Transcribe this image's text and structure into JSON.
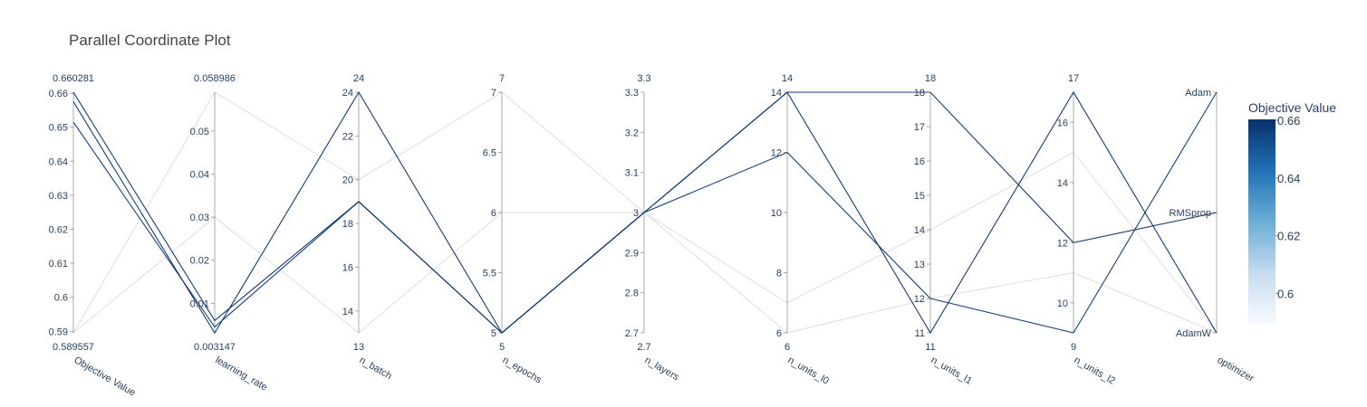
{
  "chart_data": {
    "type": "parallel_coordinates",
    "title": "Parallel Coordinate Plot",
    "axes": [
      {
        "key": "objective",
        "label": "Objective Value",
        "range": [
          0.589557,
          0.660281
        ],
        "range_labels": [
          "0.589557",
          "0.660281"
        ],
        "ticks": [
          0.59,
          0.6,
          0.61,
          0.62,
          0.63,
          0.64,
          0.65,
          0.66
        ],
        "tick_labels": [
          "0.59",
          "0.6",
          "0.61",
          "0.62",
          "0.63",
          "0.64",
          "0.65",
          "0.66"
        ]
      },
      {
        "key": "learning_rate",
        "label": "learning_rate",
        "range": [
          0.003147,
          0.058986
        ],
        "range_labels": [
          "0.003147",
          "0.058986"
        ],
        "ticks": [
          0.01,
          0.02,
          0.03,
          0.04,
          0.05
        ],
        "tick_labels": [
          "0.01",
          "0.02",
          "0.03",
          "0.04",
          "0.05"
        ]
      },
      {
        "key": "n_batch",
        "label": "n_batch",
        "range": [
          13,
          24
        ],
        "range_labels": [
          "13",
          "24"
        ],
        "ticks": [
          14,
          16,
          18,
          20,
          22,
          24
        ],
        "tick_labels": [
          "14",
          "16",
          "18",
          "20",
          "22",
          "24"
        ]
      },
      {
        "key": "n_epochs",
        "label": "n_epochs",
        "range": [
          5,
          7
        ],
        "range_labels": [
          "5",
          "7"
        ],
        "ticks": [
          5,
          5.5,
          6,
          6.5,
          7
        ],
        "tick_labels": [
          "5",
          "5.5",
          "6",
          "6.5",
          "7"
        ]
      },
      {
        "key": "n_layers",
        "label": "n_layers",
        "range": [
          2.7,
          3.3
        ],
        "range_labels": [
          "2.7",
          "3.3"
        ],
        "ticks": [
          2.7,
          2.8,
          2.9,
          3,
          3.1,
          3.2,
          3.3
        ],
        "tick_labels": [
          "2.7",
          "2.8",
          "2.9",
          "3",
          "3.1",
          "3.2",
          "3.3"
        ]
      },
      {
        "key": "n_units_l0",
        "label": "n_units_l0",
        "range": [
          6,
          14
        ],
        "range_labels": [
          "6",
          "14"
        ],
        "ticks": [
          6,
          8,
          10,
          12,
          14
        ],
        "tick_labels": [
          "6",
          "8",
          "10",
          "12",
          "14"
        ]
      },
      {
        "key": "n_units_l1",
        "label": "n_units_l1",
        "range": [
          11,
          18
        ],
        "range_labels": [
          "11",
          "18"
        ],
        "ticks": [
          11,
          12,
          13,
          14,
          15,
          16,
          17,
          18
        ],
        "tick_labels": [
          "11",
          "12",
          "13",
          "14",
          "15",
          "16",
          "17",
          "18"
        ]
      },
      {
        "key": "n_units_l2",
        "label": "n_units_l2",
        "range": [
          9,
          17
        ],
        "range_labels": [
          "9",
          "17"
        ],
        "ticks": [
          10,
          12,
          14,
          16
        ],
        "tick_labels": [
          "10",
          "12",
          "14",
          "16"
        ]
      },
      {
        "key": "optimizer",
        "label": "optimizer",
        "range": [
          0,
          2
        ],
        "range_labels": [
          "",
          ""
        ],
        "ticks": [
          0,
          1,
          2
        ],
        "tick_labels": [
          "AdamW",
          "RMSprop",
          "Adam"
        ]
      }
    ],
    "lines": [
      {
        "objective": 0.6603,
        "learning_rate": 0.006,
        "n_batch": 19,
        "n_epochs": 5,
        "n_layers": 3,
        "n_units_l0": 14,
        "n_units_l1": 11,
        "n_units_l2": 17,
        "optimizer": 0
      },
      {
        "objective": 0.6575,
        "learning_rate": 0.0031,
        "n_batch": 24,
        "n_epochs": 5,
        "n_layers": 3,
        "n_units_l0": 14,
        "n_units_l1": 18,
        "n_units_l2": 12,
        "optimizer": 1
      },
      {
        "objective": 0.6515,
        "learning_rate": 0.0045,
        "n_batch": 19,
        "n_epochs": 5,
        "n_layers": 3,
        "n_units_l0": 12,
        "n_units_l1": 12,
        "n_units_l2": 9,
        "optimizer": 2
      },
      {
        "objective": 0.5896,
        "learning_rate": 0.059,
        "n_batch": 20,
        "n_epochs": 7,
        "n_layers": 3,
        "n_units_l0": 7,
        "n_units_l1": 14,
        "n_units_l2": 15,
        "optimizer": 0
      },
      {
        "objective": 0.5896,
        "learning_rate": 0.03,
        "n_batch": 13,
        "n_epochs": 6,
        "n_layers": 3,
        "n_units_l0": 6,
        "n_units_l1": 12,
        "n_units_l2": 11,
        "optimizer": 0
      }
    ],
    "colorbar": {
      "title": "Objective Value",
      "range": [
        0.589557,
        0.660281
      ],
      "ticks": [
        0.6,
        0.62,
        0.64,
        0.66
      ],
      "tick_labels": [
        "0.6",
        "0.62",
        "0.64",
        "0.66"
      ],
      "colorscale": [
        [
          0,
          "#f7fbff"
        ],
        [
          0.25,
          "#c6dbef"
        ],
        [
          0.5,
          "#6baed6"
        ],
        [
          0.75,
          "#2171b5"
        ],
        [
          1,
          "#08306b"
        ]
      ]
    },
    "colors": {
      "axis": "#444444",
      "text": "#2a3f5f"
    }
  }
}
